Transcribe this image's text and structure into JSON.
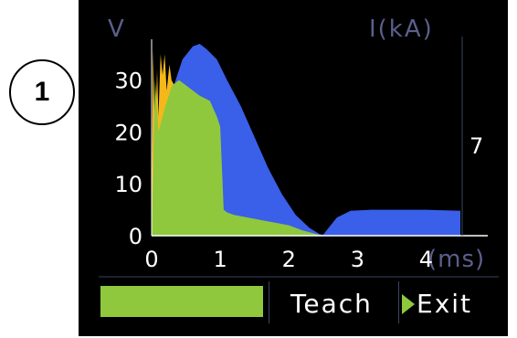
{
  "callout_label": "1",
  "chart_data": {
    "type": "area",
    "y_left_label": "V",
    "y_right_label": "I(kA)",
    "x_unit_label": "(ms)",
    "y_left_ticks": [
      "0",
      "10",
      "20",
      "30"
    ],
    "y_right_ticks": [
      "7"
    ],
    "x_ticks": [
      "0",
      "1",
      "2",
      "3",
      "4"
    ],
    "xlim": [
      0,
      4.5
    ],
    "ylim": [
      0,
      37
    ],
    "series": [
      {
        "color": "#f5b81a",
        "x": [
          0.0,
          0.02,
          0.05,
          0.08,
          0.1,
          0.13,
          0.16,
          0.19,
          0.22,
          0.26,
          0.29,
          0.33,
          0.36,
          0.4
        ],
        "y": [
          0,
          36,
          19,
          32,
          23,
          35,
          31,
          35,
          28,
          33,
          30,
          29,
          28,
          27
        ]
      },
      {
        "color": "#3a5fe8",
        "x": [
          0.15,
          0.3,
          0.45,
          0.6,
          0.7,
          0.8,
          0.95,
          1.1,
          1.3,
          1.5,
          1.7,
          1.9,
          2.1,
          2.3,
          2.45,
          2.5,
          2.55,
          2.7,
          2.9,
          3.2,
          3.6,
          4.0,
          4.5
        ],
        "y": [
          18,
          28,
          34,
          36.5,
          37,
          36,
          34,
          30,
          25,
          19,
          13,
          8,
          4,
          1.5,
          0.3,
          0.2,
          1,
          3.5,
          4.8,
          5,
          5,
          5,
          4.8
        ]
      },
      {
        "color": "#8fc83d",
        "x": [
          0.0,
          0.05,
          0.1,
          0.2,
          0.3,
          0.4,
          0.5,
          0.6,
          0.7,
          0.85,
          0.95,
          1.0,
          1.05,
          1.1,
          1.2,
          1.4,
          1.6,
          1.8,
          2.0,
          2.2,
          2.35,
          2.5
        ],
        "y": [
          0,
          30,
          20,
          25,
          29,
          30,
          29,
          28,
          27,
          26,
          23,
          21,
          5,
          4.5,
          4,
          3.5,
          3,
          2.5,
          2,
          1,
          0.5,
          0
        ]
      }
    ]
  },
  "buttons": {
    "teach_label": "Teach",
    "exit_label": "Exit"
  },
  "colors": {
    "screen_bg": "#000000",
    "axis_label": "#5b5f8a",
    "tick_text": "#ffffff",
    "grid_line": "#3a4560",
    "bar_fill": "#8fc83d"
  }
}
